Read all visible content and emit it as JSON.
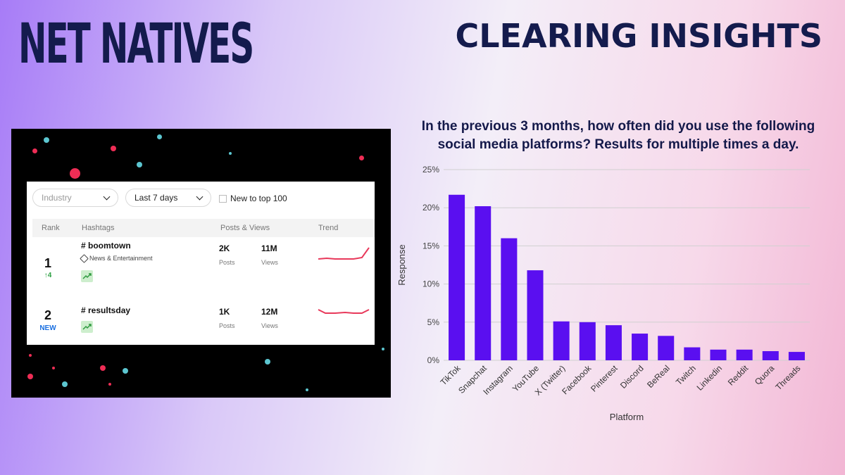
{
  "brand": "NET NATIVES",
  "headline": "CLEARING INSIGHTS",
  "screenshot": {
    "filters": {
      "industry_placeholder": "Industry",
      "period": "Last 7 days",
      "new_label": "New to top 100"
    },
    "columns": [
      "Rank",
      "Hashtags",
      "Posts & Views",
      "Trend"
    ],
    "rows": [
      {
        "rank": "1",
        "change": "↑4",
        "hashtag": "# boomtown",
        "category": "News & Entertainment",
        "posts": "2K",
        "posts_label": "Posts",
        "views": "11M",
        "views_label": "Views"
      },
      {
        "rank": "2",
        "change": "NEW",
        "hashtag": "# resultsday",
        "category": "",
        "posts": "1K",
        "posts_label": "Posts",
        "views": "12M",
        "views_label": "Views"
      }
    ],
    "colors": {
      "up": "#2ea043",
      "new": "#1a6fe0",
      "trend_line": "#e8385a"
    }
  },
  "chart_data": {
    "type": "bar",
    "title": "In the previous 3 months, how often did you use the following social media platforms? Results for multiple times a day.",
    "xlabel": "Platform",
    "ylabel": "Response",
    "categories": [
      "TikTok",
      "Snapchat",
      "Instagram",
      "YouTube",
      "X (Twitter)",
      "Facebook",
      "Pinterest",
      "Discord",
      "BeReal",
      "Twitch",
      "Linkedin",
      "Reddit",
      "Quora",
      "Threads"
    ],
    "values": [
      21.7,
      20.2,
      16.0,
      11.8,
      5.1,
      5.0,
      4.6,
      3.5,
      3.2,
      1.7,
      1.4,
      1.4,
      1.2,
      1.1
    ],
    "ylim": [
      0,
      25
    ],
    "yticks": [
      "0%",
      "5%",
      "10%",
      "15%",
      "20%",
      "25%"
    ],
    "grid": true,
    "bar_color": "#5a0ff0"
  }
}
